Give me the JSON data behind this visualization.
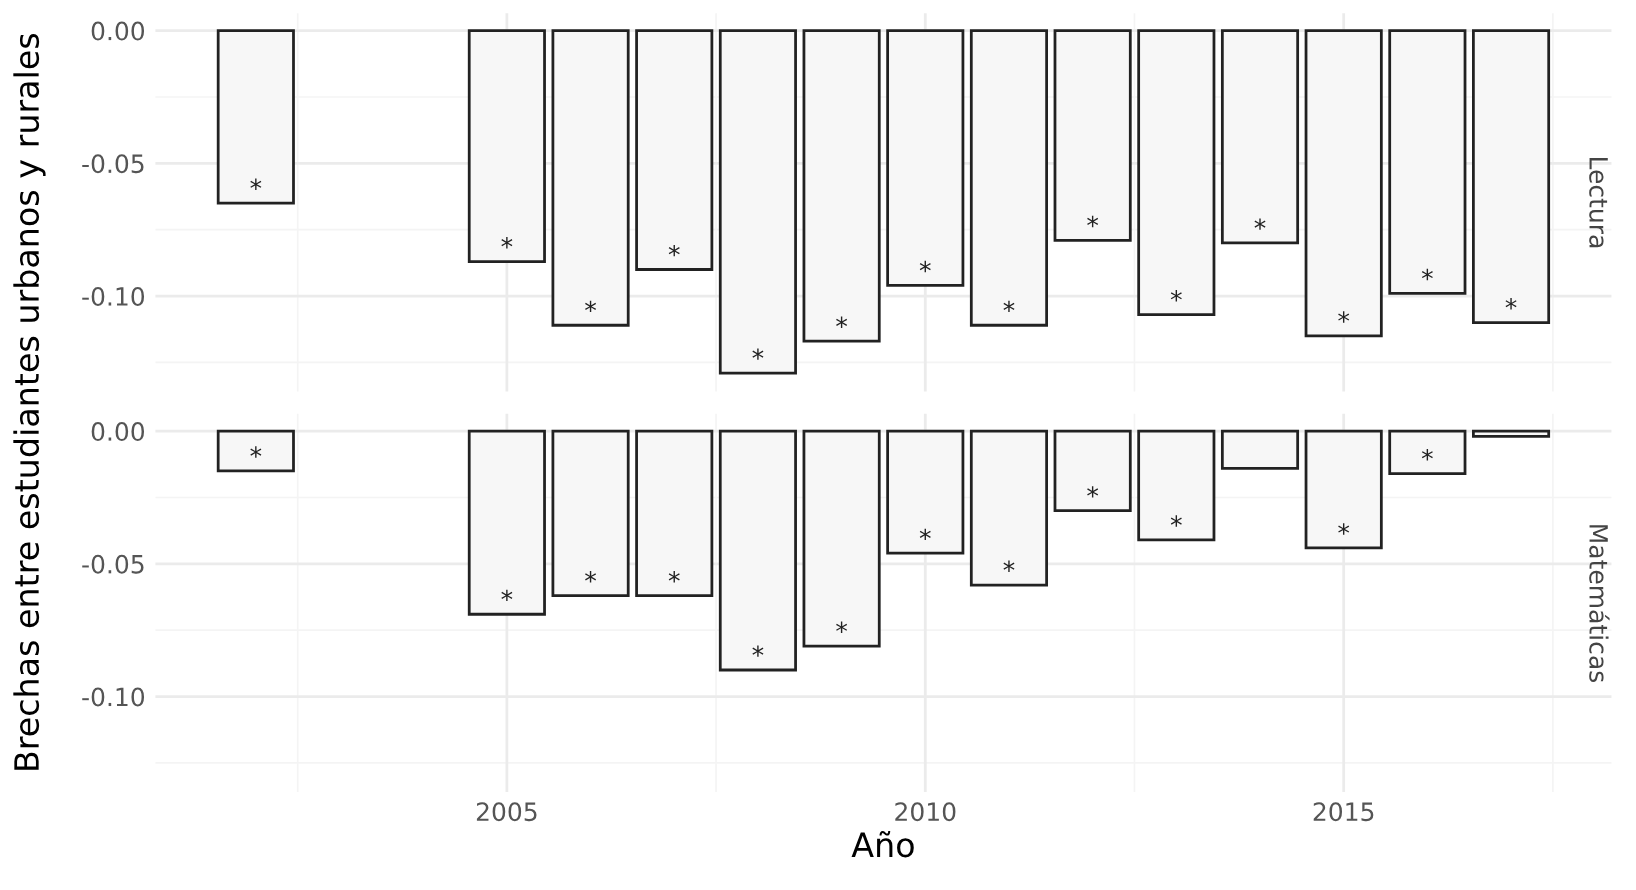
{
  "chart_data": [
    {
      "type": "bar",
      "title": "Lectura",
      "ylabel": "Brechas entre estudiantes urbanos y rurales",
      "x": [
        2002,
        2005,
        2006,
        2007,
        2008,
        2009,
        2010,
        2011,
        2012,
        2013,
        2014,
        2015,
        2016,
        2017
      ],
      "series": [
        {
          "color": "#f7f7f7",
          "values": [
            -0.065,
            -0.087,
            -0.111,
            -0.09,
            -0.129,
            -0.117,
            -0.096,
            -0.111,
            -0.079,
            -0.107,
            -0.08,
            -0.115,
            -0.099,
            -0.11
          ],
          "value_labels": [
            "*",
            "*",
            "*",
            "*",
            "*",
            "*",
            "*",
            "*",
            "*",
            "*",
            "*",
            "*",
            "*",
            "*"
          ]
        }
      ],
      "xlim": [
        2000.8,
        2018.2
      ],
      "ylim": [
        -0.136,
        0.0065
      ],
      "xticks": [
        2005,
        2010,
        2015
      ],
      "yticks": [
        {
          "value": 0,
          "label": "0.00"
        },
        {
          "value": -0.05,
          "label": "-0.05"
        },
        {
          "value": -0.1,
          "label": "-0.10"
        }
      ],
      "grid": true,
      "tick_labels": "y"
    },
    {
      "type": "bar",
      "title": "Matemáticas",
      "xlabel": "Año",
      "x": [
        2002,
        2005,
        2006,
        2007,
        2008,
        2009,
        2010,
        2011,
        2012,
        2013,
        2014,
        2015,
        2016,
        2017
      ],
      "series": [
        {
          "color": "#f7f7f7",
          "values": [
            -0.015,
            -0.069,
            -0.062,
            -0.062,
            -0.09,
            -0.081,
            -0.046,
            -0.058,
            -0.03,
            -0.041,
            -0.014,
            -0.044,
            -0.016,
            -0.002
          ],
          "value_labels": [
            "*",
            "*",
            "*",
            "*",
            "*",
            "*",
            "*",
            "*",
            "*",
            "*",
            null,
            "*",
            "*",
            null
          ]
        }
      ],
      "xlim": [
        2000.8,
        2018.2
      ],
      "ylim": [
        -0.136,
        0.0065
      ],
      "xticks": [
        2005,
        2010,
        2015
      ],
      "yticks": [
        {
          "value": 0,
          "label": "0.00"
        },
        {
          "value": -0.05,
          "label": "-0.05"
        },
        {
          "value": -0.1,
          "label": "-0.10"
        }
      ],
      "grid": true
    }
  ]
}
